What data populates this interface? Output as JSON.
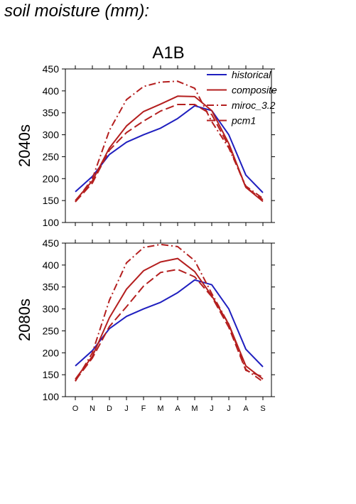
{
  "figure_title": "soil moisture (mm):",
  "chart_data": {
    "type": "line",
    "title": "A1B",
    "categories": [
      "O",
      "N",
      "D",
      "J",
      "F",
      "M",
      "A",
      "M",
      "J",
      "J",
      "A",
      "S"
    ],
    "ylim": [
      100,
      450
    ],
    "yticks": [
      100,
      150,
      200,
      250,
      300,
      350,
      400,
      450
    ],
    "grid": false,
    "legend_position": "top-right",
    "legend": [
      "historical",
      "composite",
      "miroc_3.2",
      "pcm1"
    ],
    "style": {
      "historical": {
        "color": "#1f1fbf",
        "dash": ""
      },
      "composite": {
        "color": "#b41f1f",
        "dash": ""
      },
      "miroc_3.2": {
        "color": "#b41f1f",
        "dash": "10 4 2 4"
      },
      "pcm1": {
        "color": "#b41f1f",
        "dash": "12 5"
      }
    },
    "panels": [
      {
        "ylabel": "2040s",
        "series": [
          {
            "name": "historical",
            "values": [
              170,
              205,
              255,
              283,
              300,
              315,
              337,
              366,
              355,
              300,
              208,
              168
            ]
          },
          {
            "name": "composite",
            "values": [
              150,
              195,
              270,
              320,
              353,
              370,
              388,
              387,
              355,
              280,
              180,
              148
            ]
          },
          {
            "name": "miroc_3.2",
            "values": [
              147,
              200,
              310,
              380,
              410,
              420,
              422,
              406,
              330,
              270,
              183,
              155
            ]
          },
          {
            "name": "pcm1",
            "values": [
              147,
              190,
              265,
              305,
              331,
              354,
              369,
              369,
              346,
              274,
              180,
              152
            ]
          }
        ]
      },
      {
        "ylabel": "2080s",
        "series": [
          {
            "name": "historical",
            "values": [
              170,
              205,
              255,
              283,
              300,
              315,
              337,
              366,
              355,
              300,
              208,
              168
            ]
          },
          {
            "name": "composite",
            "values": [
              140,
              192,
              280,
              345,
              387,
              407,
              415,
              385,
              330,
              265,
              170,
              140
            ]
          },
          {
            "name": "miroc_3.2",
            "values": [
              135,
              200,
              320,
              405,
              440,
              447,
              442,
              410,
              335,
              265,
              162,
              134
            ]
          },
          {
            "name": "pcm1",
            "values": [
              137,
              188,
              260,
              305,
              352,
              383,
              390,
              373,
              328,
              258,
              160,
              145
            ]
          }
        ]
      }
    ]
  }
}
